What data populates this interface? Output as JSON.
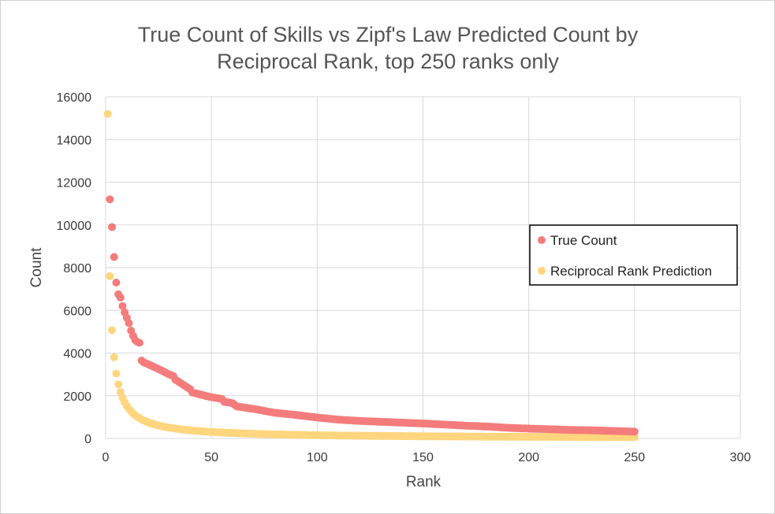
{
  "chart_data": {
    "type": "scatter",
    "title_lines": [
      "True Count of Skills vs Zipf's Law Predicted Count by",
      "Reciprocal Rank, top 250 ranks only"
    ],
    "xlabel": "Rank",
    "ylabel": "Count",
    "xlim": [
      0,
      300
    ],
    "ylim": [
      0,
      16000
    ],
    "xticks": [
      "0",
      "50",
      "100",
      "150",
      "200",
      "250",
      "300"
    ],
    "yticks": [
      "0",
      "2000",
      "4000",
      "6000",
      "8000",
      "10000",
      "12000",
      "14000",
      "16000"
    ],
    "grid": true,
    "legend_position": "right",
    "series": [
      {
        "name": "True Count",
        "color": "#f47c7c",
        "anchors": [
          [
            2,
            11200
          ],
          [
            3,
            9900
          ],
          [
            4,
            8500
          ],
          [
            5,
            7300
          ],
          [
            6,
            6750
          ],
          [
            7,
            6600
          ],
          [
            8,
            6200
          ],
          [
            9,
            5900
          ],
          [
            10,
            5650
          ],
          [
            11,
            5400
          ],
          [
            12,
            5050
          ],
          [
            13,
            4800
          ],
          [
            14,
            4600
          ],
          [
            15,
            4520
          ],
          [
            16,
            4480
          ],
          [
            17,
            3650
          ],
          [
            18,
            3560
          ],
          [
            20,
            3480
          ],
          [
            25,
            3250
          ],
          [
            30,
            3000
          ],
          [
            32,
            2920
          ],
          [
            33,
            2750
          ],
          [
            40,
            2300
          ],
          [
            41,
            2150
          ],
          [
            45,
            2050
          ],
          [
            50,
            1930
          ],
          [
            55,
            1850
          ],
          [
            56,
            1720
          ],
          [
            60,
            1650
          ],
          [
            62,
            1500
          ],
          [
            70,
            1380
          ],
          [
            80,
            1200
          ],
          [
            90,
            1100
          ],
          [
            100,
            980
          ],
          [
            110,
            880
          ],
          [
            120,
            820
          ],
          [
            130,
            780
          ],
          [
            140,
            740
          ],
          [
            150,
            700
          ],
          [
            160,
            650
          ],
          [
            170,
            600
          ],
          [
            180,
            560
          ],
          [
            190,
            500
          ],
          [
            200,
            460
          ],
          [
            210,
            430
          ],
          [
            220,
            400
          ],
          [
            230,
            380
          ],
          [
            240,
            350
          ],
          [
            250,
            320
          ]
        ]
      },
      {
        "name": "Reciprocal Rank Prediction",
        "color": "#ffd57e",
        "formula_numerator": 15200,
        "rank_start": 1,
        "rank_end": 250
      }
    ]
  }
}
